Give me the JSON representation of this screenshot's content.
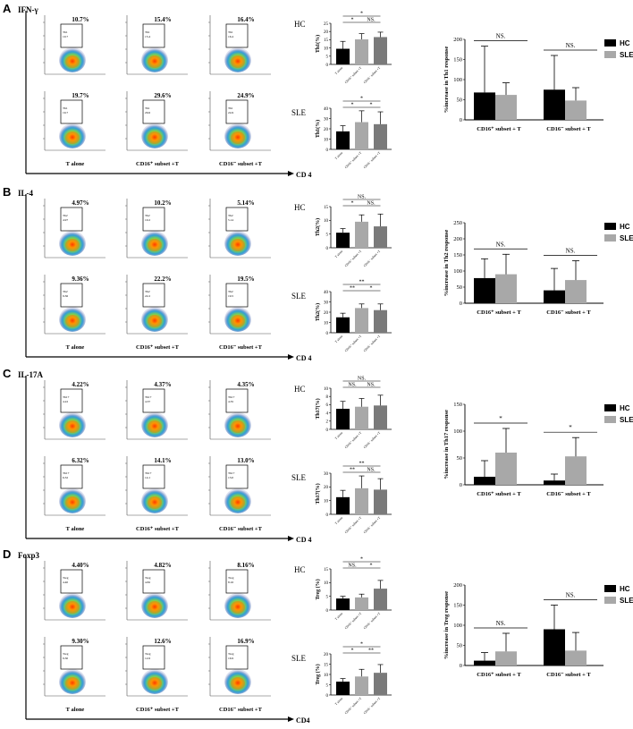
{
  "panels": [
    {
      "letter": "A",
      "marker": "IFN-γ",
      "cd4_label": "CD 4",
      "hc_label": "HC",
      "sle_label": "SLE",
      "hc_pcts": [
        "10.7%",
        "15.4%",
        "16.4%"
      ],
      "sle_pcts": [
        "19.7%",
        "29.6%",
        "24.9%"
      ],
      "gate_name": "Th1",
      "gate_hc": [
        "10.7",
        "15.4",
        "16.4"
      ],
      "gate_sle": [
        "19.7",
        "29.6",
        "24.9"
      ],
      "cond_labels": [
        "T alone",
        "CD16⁺ subset +T",
        "CD16⁻ subset +T"
      ],
      "small_top": {
        "ylabel": "Th1(%)",
        "ymax": 25,
        "ticks": [
          0,
          5,
          10,
          15,
          20,
          25
        ],
        "values": [
          9.5,
          15.2,
          16.6
        ],
        "err": [
          4.5,
          3.5,
          3.0
        ],
        "sig": [
          {
            "a": 0,
            "b": 1,
            "text": "*"
          },
          {
            "a": 1,
            "b": 2,
            "text": "NS."
          },
          {
            "a": 0,
            "b": 2,
            "text": "*"
          }
        ]
      },
      "small_bot": {
        "ylabel": "Th1(%)",
        "ymax": 40,
        "ticks": [
          0,
          10,
          20,
          30,
          40
        ],
        "values": [
          17.5,
          26.5,
          24.5
        ],
        "err": [
          5.5,
          11,
          12
        ],
        "sig": [
          {
            "a": 0,
            "b": 1,
            "text": "*"
          },
          {
            "a": 1,
            "b": 2,
            "text": "*"
          },
          {
            "a": 0,
            "b": 2,
            "text": "*"
          }
        ]
      },
      "big": {
        "ylabel": "%increase in Th1 response",
        "ymax": 200,
        "ticks": [
          0,
          50,
          100,
          150,
          200
        ],
        "groups": [
          "CD16⁺ subset + T",
          "CD16⁻ subset + T"
        ],
        "hc": [
          68,
          75
        ],
        "sle": [
          62,
          48
        ],
        "hc_err": [
          115,
          85
        ],
        "sle_err": [
          30,
          32
        ],
        "sig": [
          "NS.",
          "NS."
        ]
      }
    },
    {
      "letter": "B",
      "marker": "IL-4",
      "cd4_label": "CD 4",
      "hc_label": "HC",
      "sle_label": "SLE",
      "hc_pcts": [
        "4.97%",
        "10.2%",
        "5.14%"
      ],
      "sle_pcts": [
        "9.36%",
        "22.2%",
        "19.5%"
      ],
      "gate_name": "Th2",
      "gate_hc": [
        "4.97",
        "10.2",
        "5.14"
      ],
      "gate_sle": [
        "9.36",
        "22.2",
        "19.5"
      ],
      "cond_labels": [
        "T alone",
        "CD16⁺ subset +T",
        "CD16⁻ subset +T"
      ],
      "small_top": {
        "ylabel": "Th2(%)",
        "ymax": 15,
        "ticks": [
          0,
          5,
          10,
          15
        ],
        "values": [
          5.5,
          9.5,
          7.8
        ],
        "err": [
          1.5,
          2.5,
          4.5
        ],
        "sig": [
          {
            "a": 0,
            "b": 1,
            "text": "*"
          },
          {
            "a": 1,
            "b": 2,
            "text": "NS."
          },
          {
            "a": 0,
            "b": 2,
            "text": "NS."
          }
        ]
      },
      "small_bot": {
        "ylabel": "Th2(%)",
        "ymax": 40,
        "ticks": [
          0,
          10,
          20,
          30,
          40
        ],
        "values": [
          15,
          24,
          22
        ],
        "err": [
          4,
          4,
          6
        ],
        "sig": [
          {
            "a": 0,
            "b": 1,
            "text": "**"
          },
          {
            "a": 1,
            "b": 2,
            "text": "*"
          },
          {
            "a": 0,
            "b": 2,
            "text": "**"
          }
        ]
      },
      "big": {
        "ylabel": "%increase in Th2 response",
        "ymax": 250,
        "ticks": [
          0,
          50,
          100,
          150,
          200,
          250
        ],
        "groups": [
          "CD16⁺ subset + T",
          "CD16⁻ subset + T"
        ],
        "hc": [
          78,
          40
        ],
        "sle": [
          90,
          72
        ],
        "hc_err": [
          60,
          68
        ],
        "sle_err": [
          62,
          60
        ],
        "sig": [
          "NS.",
          "NS."
        ]
      }
    },
    {
      "letter": "C",
      "marker": "IL-17A",
      "cd4_label": "CD 4",
      "hc_label": "HC",
      "sle_label": "SLE",
      "hc_pcts": [
        "4.22%",
        "4.37%",
        "4.35%"
      ],
      "sle_pcts": [
        "6.32%",
        "14.1%",
        "13.0%"
      ],
      "gate_name": "Th17",
      "gate_hc": [
        "4.22",
        "4.37",
        "4.35"
      ],
      "gate_sle": [
        "6.32",
        "14.1",
        "13.0"
      ],
      "cond_labels": [
        "T alone",
        "CD16⁺ subset +T",
        "CD16⁻ subset +T"
      ],
      "small_top": {
        "ylabel": "Th17(%)",
        "ymax": 10,
        "ticks": [
          0,
          2,
          4,
          6,
          8,
          10
        ],
        "values": [
          5.0,
          5.5,
          5.8
        ],
        "err": [
          1.8,
          2.0,
          2.5
        ],
        "sig": [
          {
            "a": 0,
            "b": 1,
            "text": "NS."
          },
          {
            "a": 1,
            "b": 2,
            "text": "NS."
          },
          {
            "a": 0,
            "b": 2,
            "text": "NS."
          }
        ]
      },
      "small_bot": {
        "ylabel": "Th17(%)",
        "ymax": 30,
        "ticks": [
          0,
          10,
          20,
          30
        ],
        "values": [
          12.5,
          19,
          18
        ],
        "err": [
          5,
          9,
          8
        ],
        "sig": [
          {
            "a": 0,
            "b": 1,
            "text": "**"
          },
          {
            "a": 1,
            "b": 2,
            "text": "NS."
          },
          {
            "a": 0,
            "b": 2,
            "text": "**"
          }
        ]
      },
      "big": {
        "ylabel": "%increase in Th17 response",
        "ymax": 150,
        "ticks": [
          0,
          50,
          100,
          150
        ],
        "groups": [
          "CD16⁺ subset + T",
          "CD16⁻ subset + T"
        ],
        "hc": [
          15,
          8
        ],
        "sle": [
          60,
          53
        ],
        "hc_err": [
          30,
          12
        ],
        "sle_err": [
          45,
          35
        ],
        "sig": [
          "*",
          "*"
        ]
      }
    },
    {
      "letter": "D",
      "marker": "Foxp3",
      "cd4_label": "CD4",
      "hc_label": "HC",
      "sle_label": "SLE",
      "hc_pcts": [
        "4.40%",
        "4.82%",
        "8.16%"
      ],
      "sle_pcts": [
        "9.30%",
        "12.6%",
        "16.9%"
      ],
      "gate_name": "Treg",
      "gate_hc": [
        "4.40",
        "4.82",
        "8.16"
      ],
      "gate_sle": [
        "9.30",
        "12.6",
        "16.9"
      ],
      "cond_labels": [
        "T alone",
        "CD16⁺ subset +T",
        "CD16⁻ subset +T"
      ],
      "small_top": {
        "ylabel": "Treg (%)",
        "ymax": 15,
        "ticks": [
          0,
          5,
          10,
          15
        ],
        "values": [
          4.2,
          4.6,
          7.8
        ],
        "err": [
          0.8,
          1.2,
          3.0
        ],
        "sig": [
          {
            "a": 0,
            "b": 1,
            "text": "NS."
          },
          {
            "a": 1,
            "b": 2,
            "text": "*"
          },
          {
            "a": 0,
            "b": 2,
            "text": "*"
          }
        ]
      },
      "small_bot": {
        "ylabel": "Treg (%)",
        "ymax": 20,
        "ticks": [
          0,
          5,
          10,
          15,
          20
        ],
        "values": [
          6.5,
          9.0,
          10.8
        ],
        "err": [
          1.5,
          3.5,
          4.0
        ],
        "sig": [
          {
            "a": 0,
            "b": 1,
            "text": "*"
          },
          {
            "a": 1,
            "b": 2,
            "text": "**"
          },
          {
            "a": 0,
            "b": 2,
            "text": "*"
          }
        ]
      },
      "big": {
        "ylabel": "%increase in Treg response",
        "ymax": 200,
        "ticks": [
          0,
          50,
          100,
          150,
          200
        ],
        "groups": [
          "CD16⁺ subset + T",
          "CD16⁻ subset + T"
        ],
        "hc": [
          12,
          90
        ],
        "sle": [
          35,
          37
        ],
        "hc_err": [
          20,
          60
        ],
        "sle_err": [
          45,
          45
        ],
        "sig": [
          "NS.",
          "NS."
        ]
      }
    }
  ],
  "legend": {
    "hc": "HC",
    "sle": "SLE",
    "hc_color": "#000000",
    "sle_color": "#a8a8a8"
  },
  "bar_colors": [
    "#000000",
    "#a8a8a8",
    "#7a7a7a"
  ]
}
